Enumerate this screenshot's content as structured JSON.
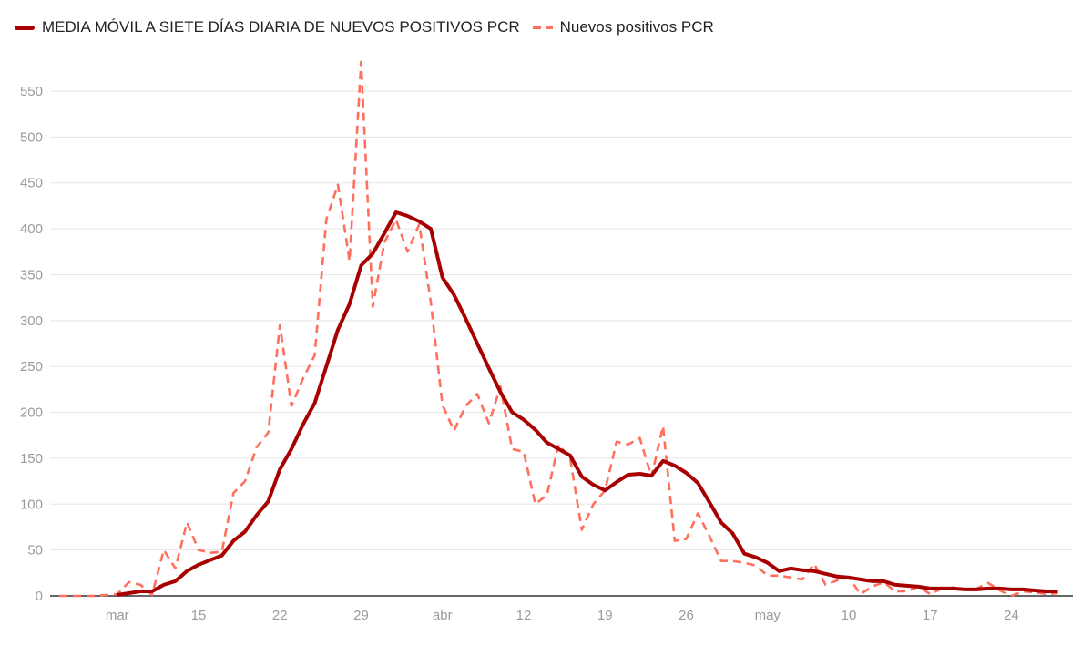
{
  "chart_data": {
    "type": "line",
    "title": "",
    "xlabel": "",
    "ylabel": "",
    "ylim": [
      0,
      580
    ],
    "grid": true,
    "legend_position": "top-left",
    "y_ticks": [
      "0",
      "50",
      "100",
      "150",
      "200",
      "250",
      "300",
      "350",
      "400",
      "450",
      "500",
      "550"
    ],
    "x_ticks": [
      {
        "date": "03-08",
        "label": "mar"
      },
      {
        "date": "03-15",
        "label": "15"
      },
      {
        "date": "03-22",
        "label": "22"
      },
      {
        "date": "03-29",
        "label": "29"
      },
      {
        "date": "04-05",
        "label": "abr"
      },
      {
        "date": "04-12",
        "label": "12"
      },
      {
        "date": "04-19",
        "label": "19"
      },
      {
        "date": "04-26",
        "label": "26"
      },
      {
        "date": "05-03",
        "label": "may"
      },
      {
        "date": "05-10",
        "label": "10"
      },
      {
        "date": "05-17",
        "label": "17"
      },
      {
        "date": "05-24",
        "label": "24"
      }
    ],
    "series": [
      {
        "name": "MEDIA MÓVIL A SIETE DÍAS DIARIA DE NUEVOS POSITIVOS PCR",
        "color": "#a80000",
        "style": "solid",
        "start": "03-08",
        "values": [
          1,
          3,
          5,
          5,
          12,
          16,
          27,
          34,
          39,
          44,
          60,
          70,
          88,
          103,
          138,
          160,
          187,
          210,
          250,
          290,
          318,
          360,
          373,
          395,
          418,
          414,
          408,
          400,
          347,
          328,
          302,
          275,
          248,
          222,
          200,
          192,
          181,
          167,
          160,
          153,
          130,
          121,
          115,
          124,
          132,
          133,
          131,
          147,
          142,
          134,
          123,
          102,
          80,
          68,
          46,
          42,
          36,
          27,
          30,
          28,
          27,
          24,
          21,
          20,
          18,
          16,
          16,
          12,
          11,
          10,
          8,
          8,
          8,
          7,
          7,
          8,
          8,
          7,
          7,
          6,
          5,
          5
        ]
      },
      {
        "name": "Nuevos positivos PCR",
        "color": "#ff6f5e",
        "style": "dashed",
        "start": "03-03",
        "values": [
          0,
          0,
          0,
          0,
          1,
          2,
          15,
          12,
          1,
          50,
          30,
          80,
          50,
          47,
          48,
          112,
          125,
          162,
          178,
          295,
          207,
          237,
          262,
          410,
          448,
          365,
          582,
          315,
          385,
          410,
          375,
          405,
          320,
          208,
          180,
          207,
          220,
          188,
          228,
          160,
          157,
          100,
          110,
          165,
          150,
          72,
          100,
          115,
          168,
          165,
          172,
          130,
          185,
          60,
          62,
          90,
          65,
          38,
          38,
          36,
          33,
          22,
          22,
          20,
          18,
          35,
          12,
          17,
          20,
          2,
          10,
          15,
          5,
          5,
          10,
          2,
          8,
          9,
          7,
          8,
          14,
          6,
          0,
          5,
          4,
          2,
          3
        ]
      }
    ]
  }
}
